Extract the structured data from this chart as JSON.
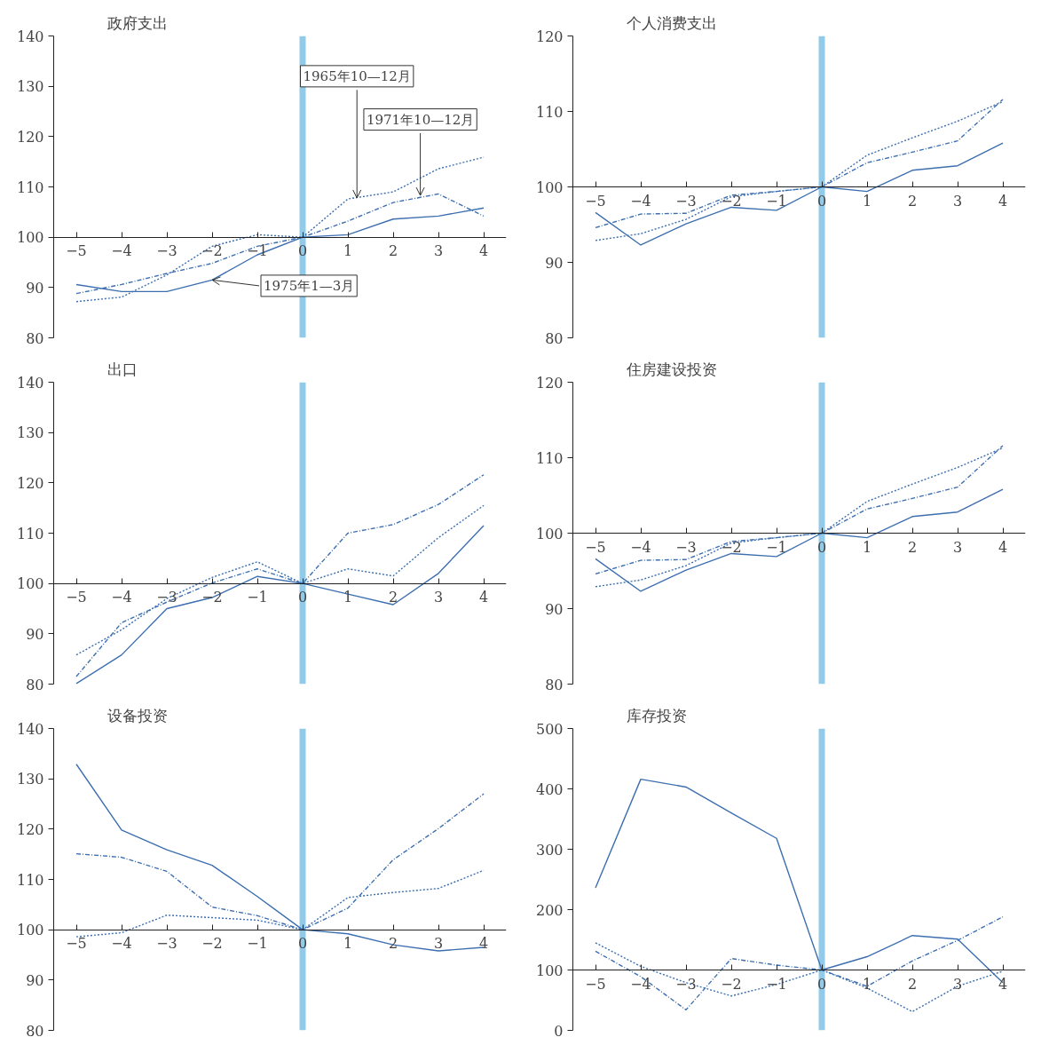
{
  "chart_data": [
    {
      "type": "line",
      "title": "政府支出",
      "x": [
        -5,
        -4,
        -3,
        -2,
        -1,
        0,
        1,
        2,
        3,
        4
      ],
      "xlim": [
        -5.5,
        4.5
      ],
      "xticks": [
        {
          "value": -5,
          "label": "−5"
        },
        {
          "value": -4,
          "label": "−4"
        },
        {
          "value": -3,
          "label": "−3"
        },
        {
          "value": -2,
          "label": "−2"
        },
        {
          "value": -1,
          "label": "−1"
        },
        0,
        1,
        2,
        3,
        4
      ],
      "ylim": [
        80,
        140
      ],
      "yticks": [
        80,
        90,
        100,
        110,
        120,
        130,
        140
      ],
      "grid": false,
      "ref_lines": [
        {
          "axis": "x",
          "value": 0,
          "color": "#92cbea"
        }
      ],
      "annotations": [
        {
          "text": "1965年10—12月",
          "x": 1.2,
          "y": 107.8
        },
        {
          "text": "1971年10—12月",
          "x": 2.6,
          "y": 108.3
        },
        {
          "text": "1975年1—3月",
          "x": -2,
          "y": 91.5
        }
      ],
      "series": [
        {
          "color": "#3d6fb0",
          "line_style": "solid",
          "values": [
            90.6,
            89.2,
            89.2,
            91.5,
            96.5,
            100,
            100.5,
            103.6,
            104.2,
            105.8
          ]
        },
        {
          "color": "#3d6fb0",
          "line_style": "dotted",
          "values": [
            87.2,
            88.1,
            92.5,
            98.2,
            100.5,
            100,
            107.6,
            109.0,
            113.6,
            115.9
          ]
        },
        {
          "color": "#3d6fb0",
          "line_style": "dashdot",
          "values": [
            88.8,
            90.6,
            92.8,
            94.8,
            98.2,
            100,
            103.2,
            106.9,
            108.6,
            104.2
          ]
        }
      ]
    },
    {
      "type": "line",
      "title": "个人消费支出",
      "x": [
        -5,
        -4,
        -3,
        -2,
        -1,
        0,
        1,
        2,
        3,
        4
      ],
      "xlim": [
        -5.5,
        4.5
      ],
      "xticks": [
        {
          "value": -5,
          "label": "−5"
        },
        {
          "value": -4,
          "label": "−4"
        },
        {
          "value": -3,
          "label": "−3"
        },
        {
          "value": -2,
          "label": "−2"
        },
        {
          "value": -1,
          "label": "−1"
        },
        0,
        1,
        2,
        3,
        4
      ],
      "ylim": [
        80,
        120
      ],
      "yticks": [
        80,
        90,
        100,
        110,
        120
      ],
      "grid": false,
      "ref_lines": [
        {
          "axis": "x",
          "value": 0,
          "color": "#92cbea"
        }
      ],
      "series": [
        {
          "color": "#3d6fb0",
          "line_style": "solid",
          "values": [
            96.6,
            92.3,
            95.1,
            97.3,
            96.9,
            100,
            99.4,
            102.2,
            102.8,
            105.8
          ]
        },
        {
          "color": "#3d6fb0",
          "line_style": "dotted",
          "values": [
            92.9,
            93.8,
            95.7,
            98.7,
            99.4,
            100,
            104.2,
            106.5,
            108.7,
            111.3
          ]
        },
        {
          "color": "#3d6fb0",
          "line_style": "dashdot",
          "values": [
            94.6,
            96.4,
            96.5,
            98.9,
            99.4,
            100,
            103.2,
            104.6,
            106.1,
            111.6
          ]
        }
      ]
    },
    {
      "type": "line",
      "title": "出口",
      "x": [
        -5,
        -4,
        -3,
        -2,
        -1,
        0,
        1,
        2,
        3,
        4
      ],
      "xlim": [
        -5.5,
        4.5
      ],
      "xticks": [
        {
          "value": -5,
          "label": "−5"
        },
        {
          "value": -4,
          "label": "−4"
        },
        {
          "value": -3,
          "label": "−3"
        },
        {
          "value": -2,
          "label": "−2"
        },
        {
          "value": -1,
          "label": "−1"
        },
        0,
        1,
        2,
        3,
        4
      ],
      "ylim": [
        80,
        140
      ],
      "yticks": [
        80,
        90,
        100,
        110,
        120,
        130,
        140
      ],
      "grid": false,
      "ref_lines": [
        {
          "axis": "x",
          "value": 0,
          "color": "#92cbea"
        }
      ],
      "series": [
        {
          "color": "#3d6fb0",
          "line_style": "solid",
          "values": [
            80.1,
            85.8,
            95.0,
            97.2,
            101.4,
            100,
            97.9,
            95.8,
            102.0,
            111.5
          ]
        },
        {
          "color": "#3d6fb0",
          "line_style": "dotted",
          "values": [
            85.8,
            90.8,
            97.0,
            101.2,
            104.3,
            100,
            102.9,
            101.5,
            109.1,
            115.5
          ]
        },
        {
          "color": "#3d6fb0",
          "line_style": "dashdot",
          "values": [
            81.5,
            92.2,
            96.3,
            100.1,
            102.9,
            100,
            110.0,
            111.7,
            115.7,
            121.6
          ]
        }
      ]
    },
    {
      "type": "line",
      "title": "住房建设投资",
      "x": [
        -5,
        -4,
        -3,
        -2,
        -1,
        0,
        1,
        2,
        3,
        4
      ],
      "xlim": [
        -5.5,
        4.5
      ],
      "xticks": [
        {
          "value": -5,
          "label": "−5"
        },
        {
          "value": -4,
          "label": "−4"
        },
        {
          "value": -3,
          "label": "−3"
        },
        {
          "value": -2,
          "label": "−2"
        },
        {
          "value": -1,
          "label": "−1"
        },
        0,
        1,
        2,
        3,
        4
      ],
      "ylim": [
        80,
        120
      ],
      "yticks": [
        80,
        90,
        100,
        110,
        120
      ],
      "grid": false,
      "ref_lines": [
        {
          "axis": "x",
          "value": 0,
          "color": "#92cbea"
        }
      ],
      "series": [
        {
          "color": "#3d6fb0",
          "line_style": "solid",
          "values": [
            96.6,
            92.3,
            95.1,
            97.3,
            96.9,
            100,
            99.4,
            102.2,
            102.8,
            105.8
          ]
        },
        {
          "color": "#3d6fb0",
          "line_style": "dotted",
          "values": [
            92.9,
            93.8,
            95.7,
            98.7,
            99.4,
            100,
            104.2,
            106.5,
            108.7,
            111.3
          ]
        },
        {
          "color": "#3d6fb0",
          "line_style": "dashdot",
          "values": [
            94.6,
            96.4,
            96.5,
            98.9,
            99.4,
            100,
            103.2,
            104.6,
            106.1,
            111.6
          ]
        }
      ]
    },
    {
      "type": "line",
      "title": "设备投资",
      "x": [
        -5,
        -4,
        -3,
        -2,
        -1,
        0,
        1,
        2,
        3,
        4
      ],
      "xlim": [
        -5.5,
        4.5
      ],
      "xticks": [
        {
          "value": -5,
          "label": "−5"
        },
        {
          "value": -4,
          "label": "−4"
        },
        {
          "value": -3,
          "label": "−3"
        },
        {
          "value": -2,
          "label": "−2"
        },
        {
          "value": -1,
          "label": "−1"
        },
        0,
        1,
        2,
        3,
        4
      ],
      "ylim": [
        80,
        140
      ],
      "yticks": [
        80,
        90,
        100,
        110,
        120,
        130,
        140
      ],
      "grid": false,
      "ref_lines": [
        {
          "axis": "x",
          "value": 0,
          "color": "#92cbea"
        }
      ],
      "series": [
        {
          "color": "#3d6fb0",
          "line_style": "solid",
          "values": [
            132.9,
            119.8,
            115.9,
            112.8,
            106.6,
            100,
            99.2,
            97.0,
            95.8,
            96.5
          ]
        },
        {
          "color": "#3d6fb0",
          "line_style": "dotted",
          "values": [
            98.6,
            99.4,
            102.9,
            102.4,
            101.9,
            100,
            106.4,
            107.4,
            108.2,
            111.8
          ]
        },
        {
          "color": "#3d6fb0",
          "line_style": "dashdot",
          "values": [
            115.1,
            114.4,
            111.6,
            104.5,
            102.8,
            100,
            104.3,
            113.9,
            120.1,
            127.0
          ]
        }
      ]
    },
    {
      "type": "line",
      "title": "库存投资",
      "x": [
        -5,
        -4,
        -3,
        -2,
        -1,
        0,
        1,
        2,
        3,
        4
      ],
      "xlim": [
        -5.5,
        4.5
      ],
      "xticks": [
        {
          "value": -5,
          "label": "−5"
        },
        {
          "value": -4,
          "label": "−4"
        },
        {
          "value": -3,
          "label": "−3"
        },
        {
          "value": -2,
          "label": "−2"
        },
        {
          "value": -1,
          "label": "−1"
        },
        0,
        1,
        2,
        3,
        4
      ],
      "ylim": [
        0,
        500
      ],
      "yticks": [
        0,
        100,
        200,
        300,
        400,
        500
      ],
      "grid": false,
      "ref_lines": [
        {
          "axis": "x",
          "value": 0,
          "color": "#92cbea"
        }
      ],
      "series": [
        {
          "color": "#3d6fb0",
          "line_style": "solid",
          "values": [
            236,
            416,
            403,
            360,
            318,
            100,
            122,
            157,
            151,
            79
          ]
        },
        {
          "color": "#3d6fb0",
          "line_style": "dotted",
          "values": [
            145,
            106,
            79,
            57,
            76,
            100,
            70,
            31,
            73,
            98
          ]
        },
        {
          "color": "#3d6fb0",
          "line_style": "dashdot",
          "values": [
            131,
            89,
            34,
            119,
            108,
            100,
            73,
            115,
            149,
            188
          ]
        }
      ]
    }
  ]
}
